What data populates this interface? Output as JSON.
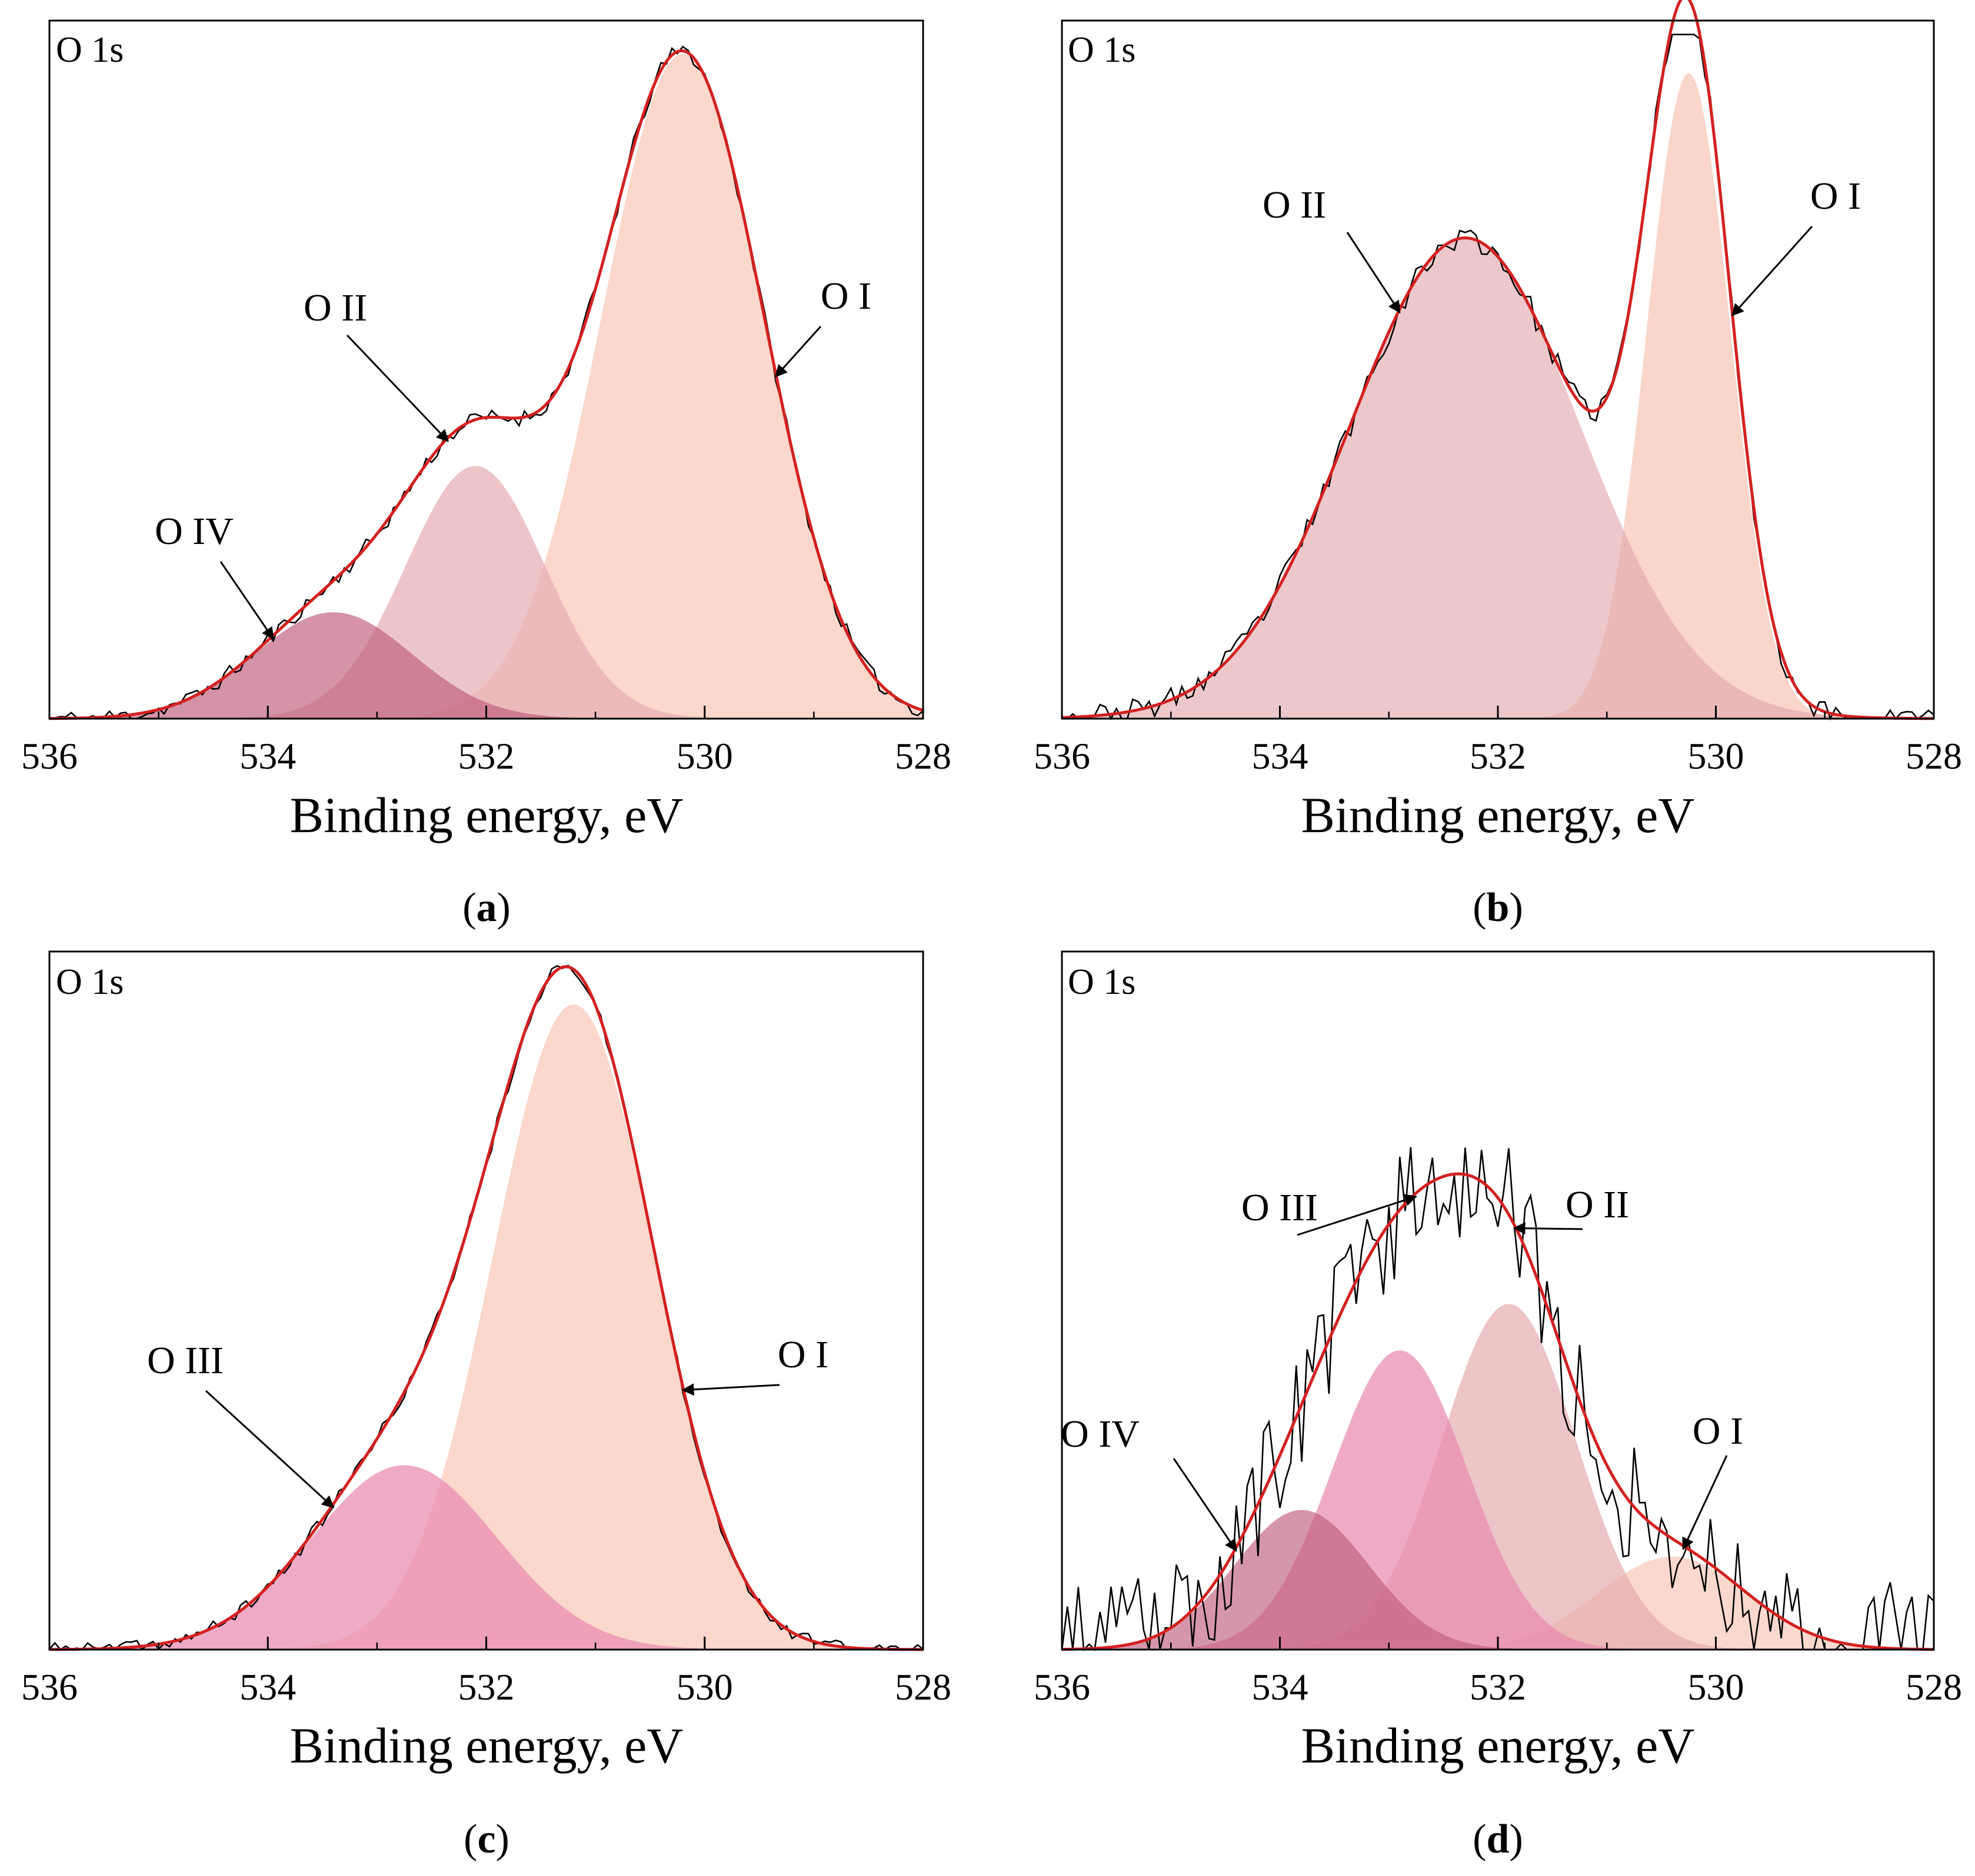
{
  "figure": {
    "panels": [
      {
        "caption_letter": "a",
        "corner_label": "O 1s"
      },
      {
        "caption_letter": "b",
        "corner_label": "O 1s"
      },
      {
        "caption_letter": "c",
        "corner_label": "O 1s"
      },
      {
        "caption_letter": "d",
        "corner_label": "O 1s"
      }
    ]
  },
  "chart_data": [
    {
      "type": "area",
      "panel": "a",
      "title": "O 1s",
      "xlabel": "Binding energy, eV",
      "ylabel": "",
      "xlim": [
        536,
        528
      ],
      "x_reversed": true,
      "ylim": [
        0,
        1.05
      ],
      "xticks": [
        536,
        534,
        532,
        530,
        528
      ],
      "legend": "none",
      "grid": false,
      "baseline": 0.0,
      "noise": 0.012,
      "noise_seed": 11,
      "components": [
        {
          "name": "O I",
          "center": 530.2,
          "fwhm": 1.75,
          "height": 1.0,
          "color": "#f9c9bb",
          "opacity": 0.75
        },
        {
          "name": "O II",
          "center": 532.1,
          "fwhm": 1.5,
          "height": 0.38,
          "color": "#e6aeb3",
          "opacity": 0.72
        },
        {
          "name": "O IV",
          "center": 533.4,
          "fwhm": 1.7,
          "height": 0.16,
          "color": "#c0607e",
          "opacity": 0.68
        }
      ],
      "annotations": [
        {
          "text": "O I",
          "target_x": 529.35
        },
        {
          "text": "O II",
          "target_x": 532.35
        },
        {
          "text": "O IV",
          "target_x": 533.95
        }
      ]
    },
    {
      "type": "area",
      "panel": "b",
      "title": "O 1s",
      "xlabel": "Binding energy, eV",
      "ylabel": "",
      "xlim": [
        536,
        528
      ],
      "x_reversed": true,
      "ylim": [
        0,
        1.06
      ],
      "xticks": [
        536,
        534,
        532,
        530,
        528
      ],
      "legend": "none",
      "grid": false,
      "baseline": 0.0,
      "noise": 0.018,
      "noise_seed": 23,
      "components": [
        {
          "name": "O I",
          "center": 530.25,
          "fwhm": 0.9,
          "height": 0.98,
          "color": "#f9c9bb",
          "opacity": 0.78
        },
        {
          "name": "O II",
          "center": 532.3,
          "fwhm": 2.5,
          "height": 0.73,
          "color": "#e0a6ab",
          "opacity": 0.62
        }
      ],
      "annotations": [
        {
          "text": "O I",
          "target_x": 529.85
        },
        {
          "text": "O II",
          "target_x": 532.9
        }
      ]
    },
    {
      "type": "area",
      "panel": "c",
      "title": "O 1s",
      "xlabel": "Binding energy, eV",
      "ylabel": "",
      "xlim": [
        536,
        528
      ],
      "x_reversed": true,
      "ylim": [
        0,
        1.06
      ],
      "xticks": [
        536,
        534,
        532,
        530,
        528
      ],
      "legend": "none",
      "grid": false,
      "baseline": 0.0,
      "noise": 0.01,
      "noise_seed": 37,
      "components": [
        {
          "name": "O I",
          "center": 531.2,
          "fwhm": 1.75,
          "height": 0.98,
          "color": "#f9c9bb",
          "opacity": 0.75
        },
        {
          "name": "O III",
          "center": 532.75,
          "fwhm": 2.0,
          "height": 0.28,
          "color": "#e98ab0",
          "opacity": 0.72
        }
      ],
      "annotations": [
        {
          "text": "O I",
          "target_x": 530.2
        },
        {
          "text": "O III",
          "target_x": 533.4
        }
      ]
    },
    {
      "type": "area",
      "panel": "d",
      "title": "O 1s",
      "xlabel": "Binding energy, eV",
      "ylabel": "",
      "xlim": [
        536,
        528
      ],
      "x_reversed": true,
      "ylim": [
        0,
        1.05
      ],
      "xticks": [
        536,
        534,
        532,
        530,
        528
      ],
      "legend": "none",
      "grid": false,
      "baseline": 0.0,
      "noise": 0.1,
      "noise_seed": 53,
      "components": [
        {
          "name": "O I",
          "center": 530.4,
          "fwhm": 1.6,
          "height": 0.14,
          "color": "#f9c9bb",
          "opacity": 0.72
        },
        {
          "name": "O II",
          "center": 531.9,
          "fwhm": 1.45,
          "height": 0.52,
          "color": "#e4a9ad",
          "opacity": 0.68
        },
        {
          "name": "O III",
          "center": 532.9,
          "fwhm": 1.45,
          "height": 0.45,
          "color": "#e98ab0",
          "opacity": 0.72
        },
        {
          "name": "O IV",
          "center": 533.8,
          "fwhm": 1.45,
          "height": 0.21,
          "color": "#c0607e",
          "opacity": 0.66
        }
      ],
      "annotations": [
        {
          "text": "O I",
          "target_x": 530.3
        },
        {
          "text": "O II",
          "target_x": 531.85
        },
        {
          "text": "O III",
          "target_x": 532.75
        },
        {
          "text": "O IV",
          "target_x": 534.4
        }
      ]
    }
  ]
}
